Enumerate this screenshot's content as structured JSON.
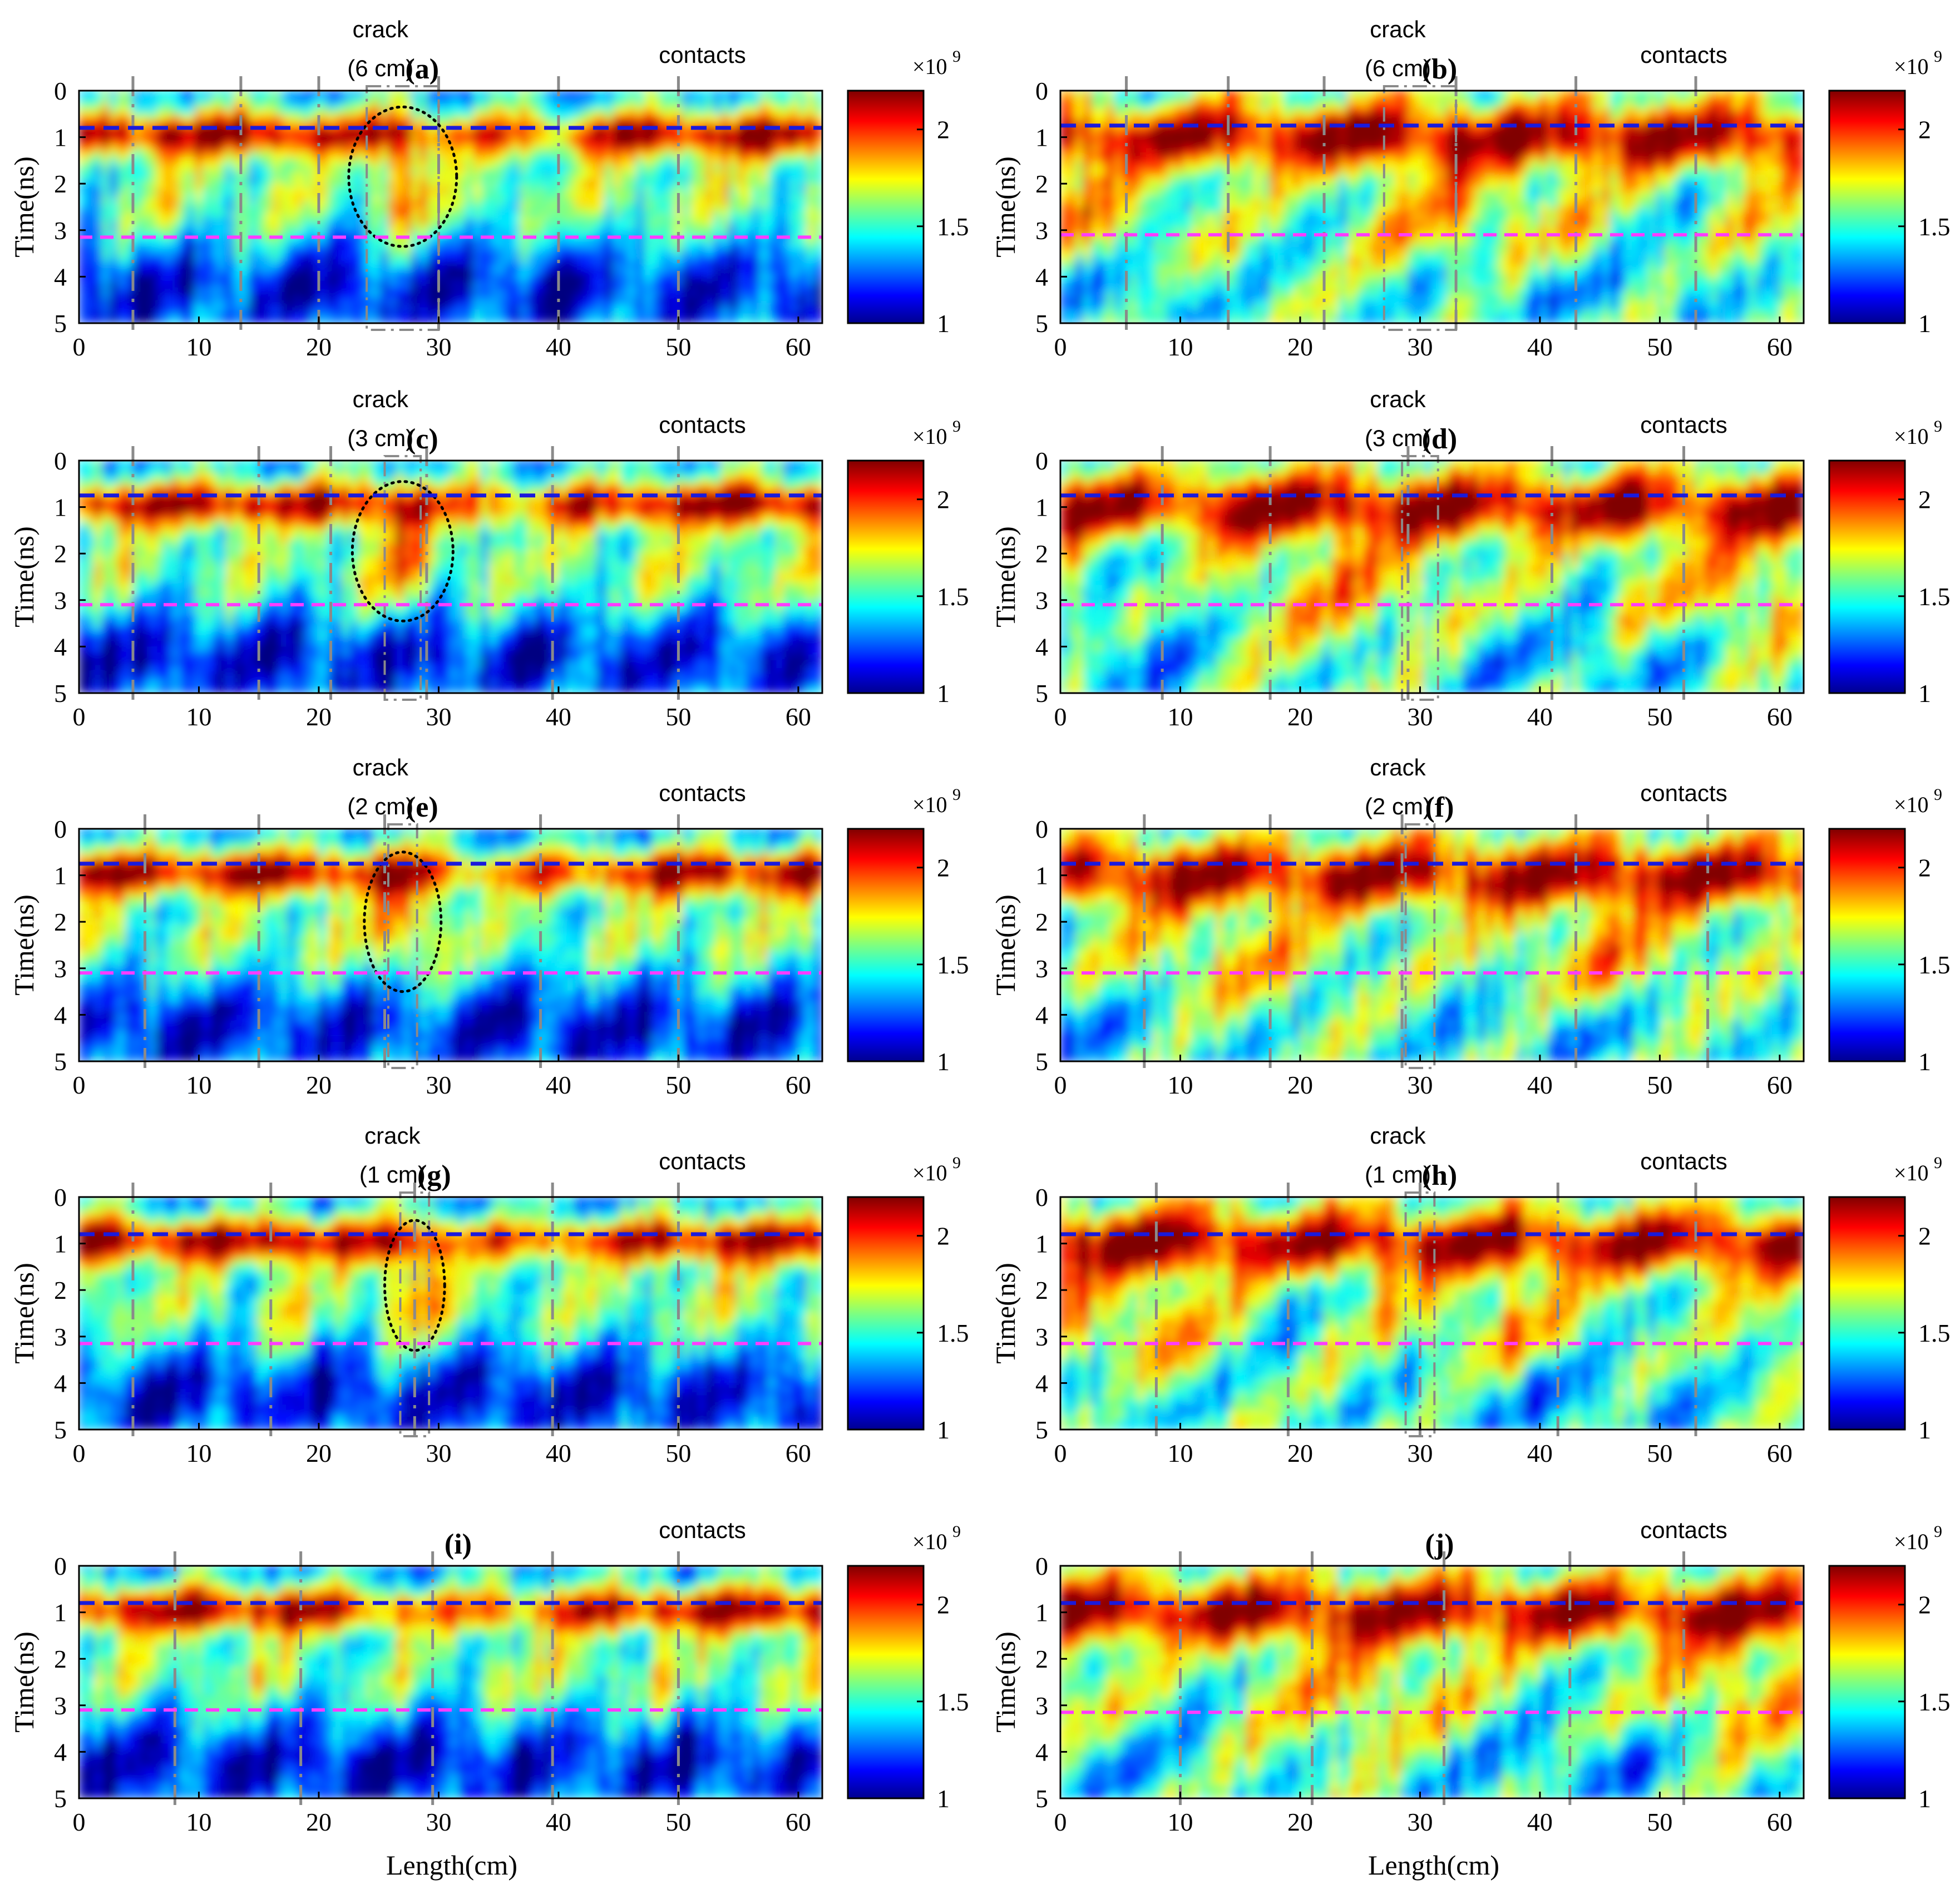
{
  "figure": {
    "shared_xlabel": "Length(cm)",
    "ylabel": "Time(ns)",
    "colorbar": {
      "exponent_label": "×10",
      "exponent_power": "9",
      "ticks": [
        "2",
        "1.5",
        "1"
      ],
      "range": [
        1,
        2.2
      ]
    },
    "marker_lines": {
      "upper_ns": 0.8,
      "lower_ns": 3.15,
      "upper_color": "#1a1adc",
      "lower_color": "#ff3cff"
    },
    "contacts_label": "contacts",
    "crack_label": "crack"
  },
  "chart_data": [
    {
      "panel": "(a)",
      "type": "heatmap",
      "crack_label": "crack",
      "crack_width_label": "(6 cm)",
      "contacts_label": "contacts",
      "x_ticks": [
        "0",
        "10",
        "20",
        "30",
        "40",
        "50",
        "60"
      ],
      "y_ticks": [
        "0",
        "1",
        "2",
        "3",
        "4",
        "5"
      ],
      "xlim": [
        0,
        62
      ],
      "ylim": [
        0,
        5
      ],
      "xlabel": "",
      "ylabel": "Time(ns)",
      "contact_positions_cm": [
        4.5,
        13.5,
        20,
        30,
        40,
        50
      ],
      "crack_x_cm": 27,
      "crack_width_cm": 6,
      "upper_line_ns": 0.8,
      "lower_line_ns": 3.15,
      "anomaly_ellipse": {
        "x_cm": 27,
        "t_ns": 1.85,
        "rx_cm": 4.5,
        "ry_ns": 1.5
      }
    },
    {
      "panel": "(b)",
      "type": "heatmap",
      "crack_label": "crack",
      "crack_width_label": "(6 cm)",
      "contacts_label": "contacts",
      "x_ticks": [
        "0",
        "10",
        "20",
        "30",
        "40",
        "50",
        "60"
      ],
      "y_ticks": [
        "0",
        "1",
        "2",
        "3",
        "4",
        "5"
      ],
      "xlim": [
        0,
        62
      ],
      "ylim": [
        0,
        5
      ],
      "xlabel": "",
      "ylabel": "Time(ns)",
      "contact_positions_cm": [
        5.5,
        14,
        22,
        33,
        43,
        53
      ],
      "crack_x_cm": 30,
      "crack_width_cm": 6,
      "upper_line_ns": 0.75,
      "lower_line_ns": 3.1
    },
    {
      "panel": "(c)",
      "type": "heatmap",
      "crack_label": "crack",
      "crack_width_label": "(3 cm)",
      "contacts_label": "contacts",
      "x_ticks": [
        "0",
        "10",
        "20",
        "30",
        "40",
        "50",
        "60"
      ],
      "y_ticks": [
        "0",
        "1",
        "2",
        "3",
        "4",
        "5"
      ],
      "xlim": [
        0,
        62
      ],
      "ylim": [
        0,
        5
      ],
      "xlabel": "",
      "ylabel": "Time(ns)",
      "contact_positions_cm": [
        4.5,
        15,
        21,
        29,
        39.5,
        50
      ],
      "crack_x_cm": 27,
      "crack_width_cm": 3,
      "upper_line_ns": 0.75,
      "lower_line_ns": 3.1,
      "anomaly_ellipse": {
        "x_cm": 27,
        "t_ns": 1.95,
        "rx_cm": 4.2,
        "ry_ns": 1.5
      }
    },
    {
      "panel": "(d)",
      "type": "heatmap",
      "crack_label": "crack",
      "crack_width_label": "(3 cm)",
      "contacts_label": "contacts",
      "x_ticks": [
        "0",
        "10",
        "20",
        "30",
        "40",
        "50",
        "60"
      ],
      "y_ticks": [
        "0",
        "1",
        "2",
        "3",
        "4",
        "5"
      ],
      "xlim": [
        0,
        62
      ],
      "ylim": [
        0,
        5
      ],
      "xlabel": "",
      "ylabel": "Time(ns)",
      "contact_positions_cm": [
        8.5,
        17.5,
        29,
        41,
        52
      ],
      "crack_x_cm": 30,
      "crack_width_cm": 3,
      "upper_line_ns": 0.75,
      "lower_line_ns": 3.1
    },
    {
      "panel": "(e)",
      "type": "heatmap",
      "crack_label": "crack",
      "crack_width_label": "(2 cm)",
      "contacts_label": "contacts",
      "x_ticks": [
        "0",
        "10",
        "20",
        "30",
        "40",
        "50",
        "60"
      ],
      "y_ticks": [
        "0",
        "1",
        "2",
        "3",
        "4",
        "5"
      ],
      "xlim": [
        0,
        62
      ],
      "ylim": [
        0,
        5
      ],
      "xlabel": "",
      "ylabel": "Time(ns)",
      "contact_positions_cm": [
        5.5,
        15,
        25.5,
        38.5,
        50
      ],
      "crack_x_cm": 27,
      "crack_width_cm": 2,
      "upper_line_ns": 0.75,
      "lower_line_ns": 3.1,
      "anomaly_ellipse": {
        "x_cm": 27,
        "t_ns": 2.0,
        "rx_cm": 3.2,
        "ry_ns": 1.5
      }
    },
    {
      "panel": "(f)",
      "type": "heatmap",
      "crack_label": "crack",
      "crack_width_label": "(2 cm)",
      "contacts_label": "contacts",
      "x_ticks": [
        "0",
        "10",
        "20",
        "30",
        "40",
        "50",
        "60"
      ],
      "y_ticks": [
        "0",
        "1",
        "2",
        "3",
        "4",
        "5"
      ],
      "xlim": [
        0,
        62
      ],
      "ylim": [
        0,
        5
      ],
      "xlabel": "",
      "ylabel": "Time(ns)",
      "contact_positions_cm": [
        7,
        17.5,
        28.5,
        43,
        54
      ],
      "crack_x_cm": 30,
      "crack_width_cm": 2,
      "upper_line_ns": 0.75,
      "lower_line_ns": 3.1
    },
    {
      "panel": "(g)",
      "type": "heatmap",
      "crack_label": "crack",
      "crack_width_label": "(1 cm)",
      "contacts_label": "contacts",
      "x_ticks": [
        "0",
        "10",
        "20",
        "30",
        "40",
        "50",
        "60"
      ],
      "y_ticks": [
        "0",
        "1",
        "2",
        "3",
        "4",
        "5"
      ],
      "xlim": [
        0,
        62
      ],
      "ylim": [
        0,
        5
      ],
      "xlabel": "",
      "ylabel": "Time(ns)",
      "contact_positions_cm": [
        4.5,
        16,
        28,
        39.5,
        50
      ],
      "crack_x_cm": 28,
      "crack_width_cm": 1,
      "upper_line_ns": 0.8,
      "lower_line_ns": 3.15,
      "anomaly_ellipse": {
        "x_cm": 28,
        "t_ns": 1.9,
        "rx_cm": 2.5,
        "ry_ns": 1.4
      }
    },
    {
      "panel": "(h)",
      "type": "heatmap",
      "crack_label": "crack",
      "crack_width_label": "(1 cm)",
      "contacts_label": "contacts",
      "x_ticks": [
        "0",
        "10",
        "20",
        "30",
        "40",
        "50",
        "60"
      ],
      "y_ticks": [
        "0",
        "1",
        "2",
        "3",
        "4",
        "5"
      ],
      "xlim": [
        0,
        62
      ],
      "ylim": [
        0,
        5
      ],
      "xlabel": "",
      "ylabel": "Time(ns)",
      "contact_positions_cm": [
        8,
        19,
        30,
        41.5,
        53
      ],
      "crack_x_cm": 30,
      "crack_width_cm": 1,
      "upper_line_ns": 0.8,
      "lower_line_ns": 3.15
    },
    {
      "panel": "(i)",
      "type": "heatmap",
      "crack_label": "",
      "crack_width_label": "",
      "contacts_label": "contacts",
      "x_ticks": [
        "0",
        "10",
        "20",
        "30",
        "40",
        "50",
        "60"
      ],
      "y_ticks": [
        "0",
        "1",
        "2",
        "3",
        "4",
        "5"
      ],
      "xlim": [
        0,
        62
      ],
      "ylim": [
        0,
        5
      ],
      "xlabel": "Length(cm)",
      "ylabel": "Time(ns)",
      "contact_positions_cm": [
        8,
        18.5,
        29.5,
        39.5,
        50
      ],
      "upper_line_ns": 0.8,
      "lower_line_ns": 3.1
    },
    {
      "panel": "(j)",
      "type": "heatmap",
      "crack_label": "",
      "crack_width_label": "",
      "contacts_label": "contacts",
      "x_ticks": [
        "0",
        "10",
        "20",
        "30",
        "40",
        "50",
        "60"
      ],
      "y_ticks": [
        "0",
        "1",
        "2",
        "3",
        "4",
        "5"
      ],
      "xlim": [
        0,
        62
      ],
      "ylim": [
        0,
        5
      ],
      "xlabel": "Length(cm)",
      "ylabel": "Time(ns)",
      "contact_positions_cm": [
        10,
        21,
        32,
        42.5,
        52
      ],
      "upper_line_ns": 0.8,
      "lower_line_ns": 3.15
    }
  ]
}
